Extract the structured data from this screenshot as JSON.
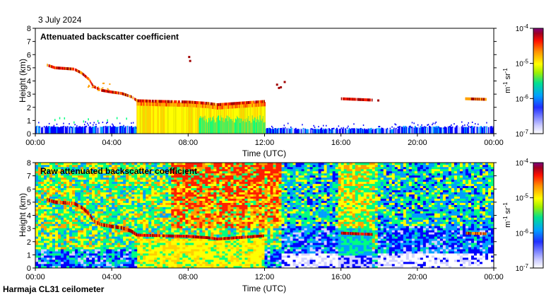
{
  "date": "3 July 2024",
  "footer": "Harmaja CL31 ceilometer",
  "colors": [
    "#ffffff",
    "#d2d2ff",
    "#0000ff",
    "#00a0ff",
    "#00ff80",
    "#ffff00",
    "#ffa000",
    "#ff2000",
    "#a00000",
    "#800080"
  ],
  "chart_data": [
    {
      "type": "heatmap",
      "title": "Attenuated backscatter coefficient",
      "xlabel": "Time (UTC)",
      "ylabel": "Height (km)",
      "xlim": [
        0,
        24
      ],
      "ylim": [
        0,
        8
      ],
      "x_ticks": [
        "00:00",
        "04:00",
        "08:00",
        "12:00",
        "16:00",
        "20:00",
        "00:00"
      ],
      "y_ticks": [
        "0",
        "1",
        "2",
        "3",
        "4",
        "5",
        "6",
        "7",
        "8"
      ],
      "colorbar": {
        "min_exp": -7,
        "max_exp": -4,
        "tick_bases": [
          "10",
          "10",
          "10",
          "10"
        ],
        "tick_exps": [
          "-7",
          "-6",
          "-5",
          "-4"
        ],
        "label_unit1": "m",
        "label_exp1": "-1",
        "label_unit2": " sr",
        "label_exp2": "-1"
      },
      "features": [
        {
          "name": "upper-cloud-layer",
          "t": [
            0.6,
            1.0,
            1.5,
            2.0,
            2.4,
            2.8,
            3.0,
            3.4,
            4.0,
            4.5,
            5.0,
            5.3
          ],
          "h": [
            5.2,
            5.0,
            4.95,
            4.9,
            4.6,
            4.1,
            3.6,
            3.3,
            3.15,
            3.05,
            2.8,
            2.5
          ]
        },
        {
          "name": "stratocumulus-top",
          "t": [
            5.3,
            6.5,
            8.0,
            9.0,
            9.5,
            10.0,
            11.0,
            12.0
          ],
          "h": [
            2.5,
            2.45,
            2.4,
            2.3,
            2.2,
            2.25,
            2.35,
            2.45
          ]
        },
        {
          "name": "cloud-16h",
          "t": [
            16.0,
            17.6
          ],
          "h": [
            2.65,
            2.55
          ]
        },
        {
          "name": "cloud-22h",
          "t": [
            22.5,
            23.6
          ],
          "h": [
            2.65,
            2.6
          ]
        }
      ]
    },
    {
      "type": "heatmap",
      "title": "Raw attenuated backscatter coefficient",
      "xlabel": "Time (UTC)",
      "ylabel": "Height (km)",
      "xlim": [
        0,
        24
      ],
      "ylim": [
        0,
        8
      ],
      "x_ticks": [
        "00:00",
        "04:00",
        "08:00",
        "12:00",
        "16:00",
        "20:00",
        "00:00"
      ],
      "y_ticks": [
        "0",
        "1",
        "2",
        "3",
        "4",
        "5",
        "6",
        "7",
        "8"
      ],
      "colorbar": {
        "min_exp": -7,
        "max_exp": -4,
        "tick_bases": [
          "10",
          "10",
          "10",
          "10"
        ],
        "tick_exps": [
          "-7",
          "-6",
          "-5",
          "-4"
        ],
        "label_unit1": "m",
        "label_exp1": "-1",
        "label_unit2": " sr",
        "label_exp2": "-1"
      }
    }
  ]
}
